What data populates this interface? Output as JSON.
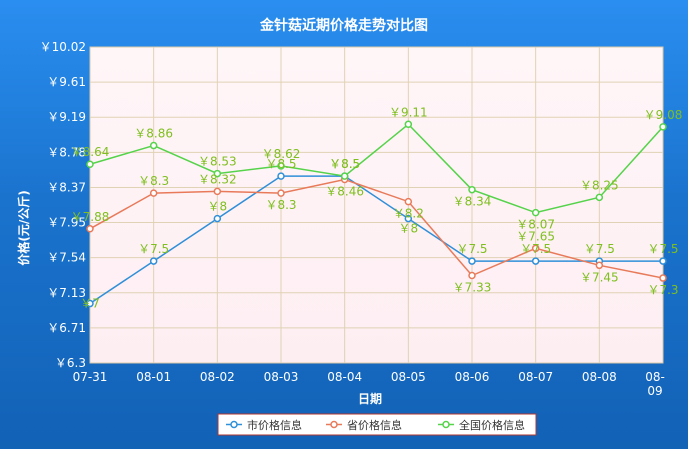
{
  "chart_data": {
    "type": "line",
    "title": "金针菇近期价格走势对比图",
    "xlabel": "日期",
    "ylabel": "价格(元/公斤)",
    "categories": [
      "07-31",
      "08-01",
      "08-02",
      "08-03",
      "08-04",
      "08-05",
      "08-06",
      "08-07",
      "08-08",
      "08-09"
    ],
    "yticks": [
      "￥6.3",
      "￥6.71",
      "￥7.13",
      "￥7.54",
      "￥7.95",
      "￥8.37",
      "￥8.78",
      "￥9.19",
      "￥9.61",
      "￥10.02"
    ],
    "ylim": [
      6.3,
      10.02
    ],
    "grid": true,
    "legend_position": "bottom",
    "series": [
      {
        "name": "市价格信息",
        "color": "#2f8fd8",
        "values": [
          7.0,
          7.5,
          8.0,
          8.5,
          8.5,
          8.0,
          7.5,
          7.5,
          7.5,
          7.5
        ],
        "labels": [
          "￥7",
          "￥7.5",
          "￥8",
          "￥8.5",
          "￥8.5",
          "￥8",
          "￥7.5",
          "￥7.5",
          "￥7.5",
          "￥7.5"
        ]
      },
      {
        "name": "省价格信息",
        "color": "#e87a5a",
        "values": [
          7.88,
          8.3,
          8.32,
          8.3,
          8.46,
          8.2,
          7.33,
          7.65,
          7.45,
          7.3
        ],
        "labels": [
          "￥7.88",
          "￥8.3",
          "￥8.32",
          "￥8.3",
          "￥8.46",
          "￥8.2",
          "￥7.33",
          "￥7.65",
          "￥7.45",
          "￥7.3"
        ]
      },
      {
        "name": "全国价格信息",
        "color": "#55d34a",
        "values": [
          8.64,
          8.86,
          8.53,
          8.62,
          8.5,
          9.11,
          8.34,
          8.07,
          8.25,
          9.08
        ],
        "labels": [
          "￥8.64",
          "￥8.86",
          "￥8.53",
          "￥8.62",
          "￥8.5",
          "￥9.11",
          "￥8.34",
          "￥8.07",
          "￥8.25",
          "￥9.08"
        ]
      }
    ]
  }
}
